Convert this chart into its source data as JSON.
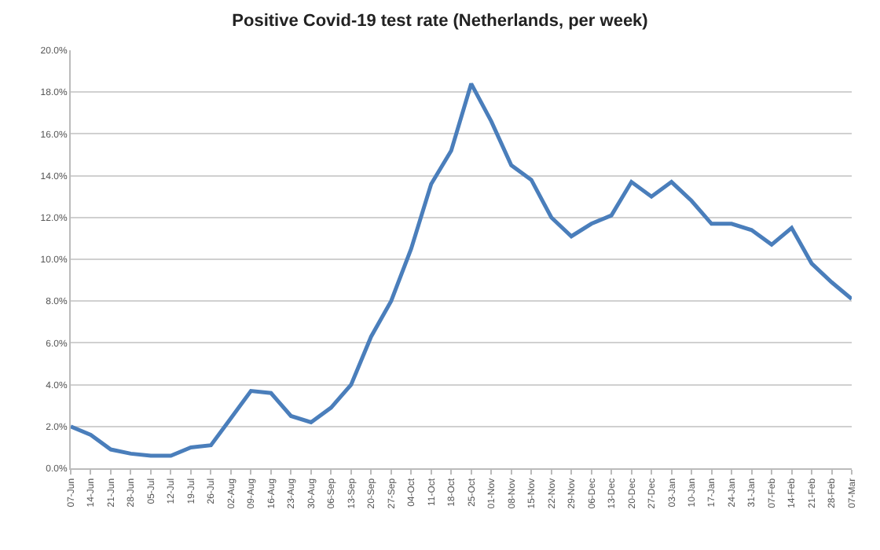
{
  "chart_data": {
    "type": "line",
    "title": "Positive Covid-19 test rate (Netherlands, per week)",
    "categories": [
      "07-Jun",
      "14-Jun",
      "21-Jun",
      "28-Jun",
      "05-Jul",
      "12-Jul",
      "19-Jul",
      "26-Jul",
      "02-Aug",
      "09-Aug",
      "16-Aug",
      "23-Aug",
      "30-Aug",
      "06-Sep",
      "13-Sep",
      "20-Sep",
      "27-Sep",
      "04-Oct",
      "11-Oct",
      "18-Oct",
      "25-Oct",
      "01-Nov",
      "08-Nov",
      "15-Nov",
      "22-Nov",
      "29-Nov",
      "06-Dec",
      "13-Dec",
      "20-Dec",
      "27-Dec",
      "03-Jan",
      "10-Jan",
      "17-Jan",
      "24-Jan",
      "31-Jan",
      "07-Feb",
      "14-Feb",
      "21-Feb",
      "28-Feb",
      "07-Mar"
    ],
    "series": [
      {
        "color": "#4a7ebb",
        "values": [
          2.0,
          1.6,
          0.9,
          0.7,
          0.6,
          0.6,
          1.0,
          1.1,
          2.4,
          3.7,
          3.6,
          2.5,
          2.2,
          2.9,
          4.0,
          6.3,
          8.0,
          10.5,
          13.6,
          15.2,
          18.4,
          16.6,
          14.5,
          13.8,
          12.0,
          11.1,
          11.7,
          12.1,
          13.7,
          13.0,
          13.7,
          12.8,
          11.7,
          11.7,
          11.4,
          10.7,
          11.5,
          9.8,
          8.9,
          8.1
        ]
      }
    ],
    "ylim": [
      0,
      20
    ],
    "yticks": [
      {
        "value": 0,
        "label": "0.0%"
      },
      {
        "value": 2,
        "label": "2.0%"
      },
      {
        "value": 4,
        "label": "4.0%"
      },
      {
        "value": 6,
        "label": "6.0%"
      },
      {
        "value": 8,
        "label": "8.0%"
      },
      {
        "value": 10,
        "label": "10.0%"
      },
      {
        "value": 12,
        "label": "12.0%"
      },
      {
        "value": 14,
        "label": "14.0%"
      },
      {
        "value": 16,
        "label": "16.0%"
      },
      {
        "value": 18,
        "label": "18.0%"
      },
      {
        "value": 20,
        "label": "20.0%"
      }
    ],
    "grid": "y",
    "marker": "none",
    "line_style": "solid"
  }
}
